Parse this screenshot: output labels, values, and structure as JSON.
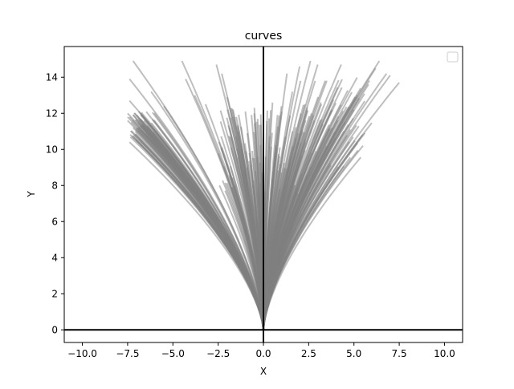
{
  "chart_data": {
    "type": "line",
    "title": "curves",
    "xlabel": "X",
    "ylabel": "Y",
    "xlim": [
      -11,
      11
    ],
    "ylim": [
      -0.7,
      15.7
    ],
    "xticks": [
      -10.0,
      -7.5,
      -5.0,
      -2.5,
      0.0,
      2.5,
      5.0,
      7.5,
      10.0
    ],
    "xtick_labels": [
      "−10.0",
      "−7.5",
      "−5.0",
      "−2.5",
      "0.0",
      "2.5",
      "5.0",
      "7.5",
      "10.0"
    ],
    "yticks": [
      0,
      2,
      4,
      6,
      8,
      10,
      12,
      14
    ],
    "ytick_labels": [
      "0",
      "2",
      "4",
      "6",
      "8",
      "10",
      "12",
      "14"
    ],
    "reference_lines": {
      "x": 0,
      "y": 0,
      "color": "#000000"
    },
    "legend": {
      "placement": "top-right",
      "entries": []
    },
    "grid": false,
    "series_color": "#808080",
    "series_alpha": 0.5,
    "series_description": "hundreds of gray curves fanning upward from the origin; samples of their endpoints below",
    "curve_endpoints": [
      [
        -7.5,
        12.0
      ],
      [
        -7.5,
        11.8
      ],
      [
        -7.5,
        11.6
      ],
      [
        -7.4,
        12.7
      ],
      [
        -7.4,
        10.4
      ],
      [
        -7.3,
        11.5
      ],
      [
        -7.2,
        11.9
      ],
      [
        -7.2,
        10.7
      ],
      [
        -7.0,
        11.9
      ],
      [
        -6.9,
        11.7
      ],
      [
        -6.8,
        11.3
      ],
      [
        -6.6,
        11.6
      ],
      [
        -6.5,
        10.9
      ],
      [
        -6.4,
        11.2
      ],
      [
        -6.0,
        10.6
      ],
      [
        -7.2,
        14.9
      ],
      [
        -7.4,
        13.9
      ],
      [
        -6.2,
        13.2
      ],
      [
        -5.5,
        12.4
      ],
      [
        -4.5,
        14.9
      ],
      [
        -4.3,
        13.9
      ],
      [
        -3.8,
        13.0
      ],
      [
        -3.2,
        12.5
      ],
      [
        -2.6,
        14.7
      ],
      [
        -2.3,
        14.2
      ],
      [
        -2.0,
        12.9
      ],
      [
        -1.8,
        12.3
      ],
      [
        -1.5,
        11.8
      ],
      [
        -1.0,
        12.1
      ],
      [
        -0.5,
        12.3
      ],
      [
        0.0,
        12.4
      ],
      [
        0.5,
        12.6
      ],
      [
        1.0,
        12.4
      ],
      [
        1.3,
        14.2
      ],
      [
        1.6,
        13.2
      ],
      [
        2.0,
        14.6
      ],
      [
        2.3,
        12.5
      ],
      [
        2.6,
        14.9
      ],
      [
        3.0,
        14.7
      ],
      [
        3.2,
        12.5
      ],
      [
        3.5,
        13.8
      ],
      [
        3.8,
        12.2
      ],
      [
        4.1,
        11.6
      ],
      [
        4.3,
        14.7
      ],
      [
        4.5,
        11.5
      ],
      [
        4.8,
        11.1
      ],
      [
        5.0,
        12.2
      ],
      [
        5.5,
        10.2
      ],
      [
        5.6,
        10.9
      ],
      [
        5.8,
        13.6
      ],
      [
        6.2,
        14.5
      ],
      [
        6.4,
        14.9
      ],
      [
        6.8,
        14.2
      ],
      [
        7.0,
        14.1
      ],
      [
        7.5,
        13.7
      ]
    ]
  }
}
